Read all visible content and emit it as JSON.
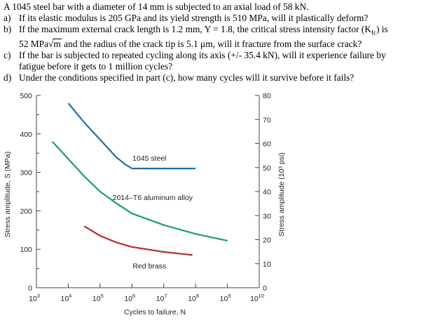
{
  "problem": {
    "intro": "A 1045 steel bar with a diameter of 14 mm is subjected to an axial load of 58 kN.",
    "items": [
      {
        "label": "a)",
        "line1": "If its elastic modulus is 205 GPa and its yield strength is 510 MPa, will it plastically deform?"
      },
      {
        "label": "b)",
        "line1": "If the maximum external crack length is 1.2 mm, Y = 1.8, the critical stress intensity factor (K",
        "sub": "Ic",
        "line1_end": ") is",
        "line2_pre": "52 MPa",
        "sqrt_text": "m",
        "line2_post": " and the radius of the crack tip is 5.1 μm, will it fracture from the surface crack?"
      },
      {
        "label": "c)",
        "line1": "If the bar is subjected to repeated cycling along its axis (+/- 35.4 kN), will it experience failure by",
        "line2": "fatigue before it gets to 1 million cycles?"
      },
      {
        "label": "d)",
        "line1": "Under the conditions specified in part (c), how many cycles will it survive before it fails?"
      }
    ]
  },
  "chart_data": {
    "type": "line",
    "title": "",
    "xlabel": "Cycles to failure, N",
    "ylabel": "Stress amplitude, S (MPa)",
    "ylabel_right": "Stress amplitude (10³ psi)",
    "xscale": "log",
    "xlim": [
      3,
      10
    ],
    "ylim": [
      0,
      500
    ],
    "ylim_right": [
      0,
      80
    ],
    "x_ticks": [
      {
        "exp": 3,
        "label": "10",
        "sup": "3"
      },
      {
        "exp": 4,
        "label": "10",
        "sup": "4"
      },
      {
        "exp": 5,
        "label": "10",
        "sup": "5"
      },
      {
        "exp": 6,
        "label": "10",
        "sup": "6"
      },
      {
        "exp": 7,
        "label": "10",
        "sup": "7"
      },
      {
        "exp": 8,
        "label": "10",
        "sup": "8"
      },
      {
        "exp": 9,
        "label": "10",
        "sup": "9"
      },
      {
        "exp": 10,
        "label": "10",
        "sup": "10"
      }
    ],
    "y_ticks": [
      0,
      100,
      200,
      300,
      400,
      500
    ],
    "y_ticks_right": [
      0,
      10,
      20,
      30,
      40,
      50,
      60,
      70,
      80
    ],
    "series": [
      {
        "name": "1045 steel",
        "color": "#1f6fb3",
        "points": [
          [
            4.0,
            480
          ],
          [
            4.5,
            430
          ],
          [
            5.0,
            385
          ],
          [
            5.5,
            340
          ],
          [
            5.8,
            320
          ],
          [
            6.0,
            310
          ],
          [
            7.0,
            310
          ],
          [
            8.0,
            310
          ]
        ]
      },
      {
        "name": "2014–T6 aluminum alloy",
        "color": "#1e9a70",
        "points": [
          [
            3.5,
            380
          ],
          [
            4.0,
            335
          ],
          [
            4.5,
            290
          ],
          [
            5.0,
            250
          ],
          [
            5.5,
            220
          ],
          [
            6.0,
            193
          ],
          [
            7.0,
            163
          ],
          [
            8.0,
            140
          ],
          [
            9.0,
            122
          ]
        ]
      },
      {
        "name": "Red brass",
        "color": "#b03030",
        "points": [
          [
            4.5,
            160
          ],
          [
            5.0,
            135
          ],
          [
            5.5,
            118
          ],
          [
            6.0,
            106
          ],
          [
            7.0,
            93
          ],
          [
            7.9,
            85
          ]
        ]
      }
    ],
    "annotations": [
      {
        "text": "1045 steel",
        "x": 6.55,
        "y": 330
      },
      {
        "text": "2014–T6 aluminum alloy",
        "x": 6.65,
        "y": 228
      },
      {
        "text": "Red brass",
        "x": 6.55,
        "y": 50
      }
    ]
  }
}
